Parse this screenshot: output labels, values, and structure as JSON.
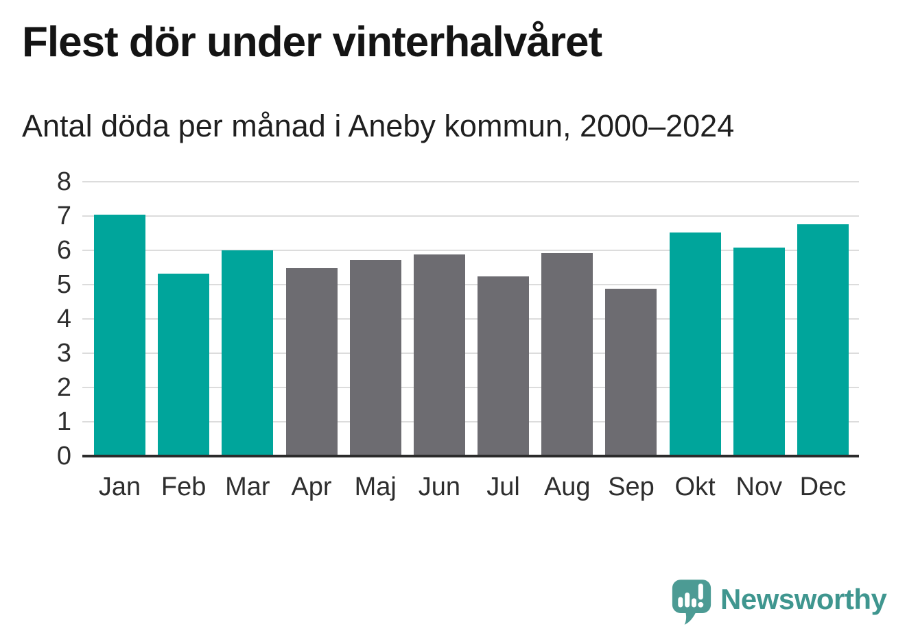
{
  "header": {
    "title": "Flest dör under vinterhalvåret",
    "subtitle": "Antal döda per månad i Aneby kommun, 2000–2024"
  },
  "chart_data": {
    "type": "bar",
    "title": "Flest dör under vinterhalvåret",
    "subtitle": "Antal döda per månad i Aneby kommun, 2000–2024",
    "categories": [
      "Jan",
      "Feb",
      "Mar",
      "Apr",
      "Maj",
      "Jun",
      "Jul",
      "Aug",
      "Sep",
      "Okt",
      "Nov",
      "Dec"
    ],
    "values": [
      7.04,
      5.32,
      6.0,
      5.48,
      5.72,
      5.88,
      5.24,
      5.92,
      4.88,
      6.52,
      6.08,
      6.76
    ],
    "bar_colors": [
      "#00a59b",
      "#00a59b",
      "#00a59b",
      "#6d6c71",
      "#6d6c71",
      "#6d6c71",
      "#6d6c71",
      "#6d6c71",
      "#6d6c71",
      "#00a59b",
      "#00a59b",
      "#00a59b"
    ],
    "xlabel": "",
    "ylabel": "",
    "ylim": [
      0,
      8
    ],
    "yticks": [
      0,
      1,
      2,
      3,
      4,
      5,
      6,
      7,
      8
    ],
    "grid": "horizontal",
    "legend": "none",
    "highlight_color_meaning": "winter months (Jan–Mar, Okt–Dec) teal, summer months (Apr–Sep) gray"
  },
  "colors": {
    "bar_highlight": "#00a59b",
    "bar_muted": "#6d6c71",
    "gridline": "#dcdcdc",
    "axis_line": "#2b2b2b",
    "title_text": "#141414",
    "tick_text": "#2e2e2e",
    "logo": "#3f968f",
    "logo_icon_bubble": "#4c9b94"
  },
  "branding": {
    "logo_text": "Newsworthy",
    "logo_icon": "speech-bubble-bar-chart-exclamation-icon"
  }
}
